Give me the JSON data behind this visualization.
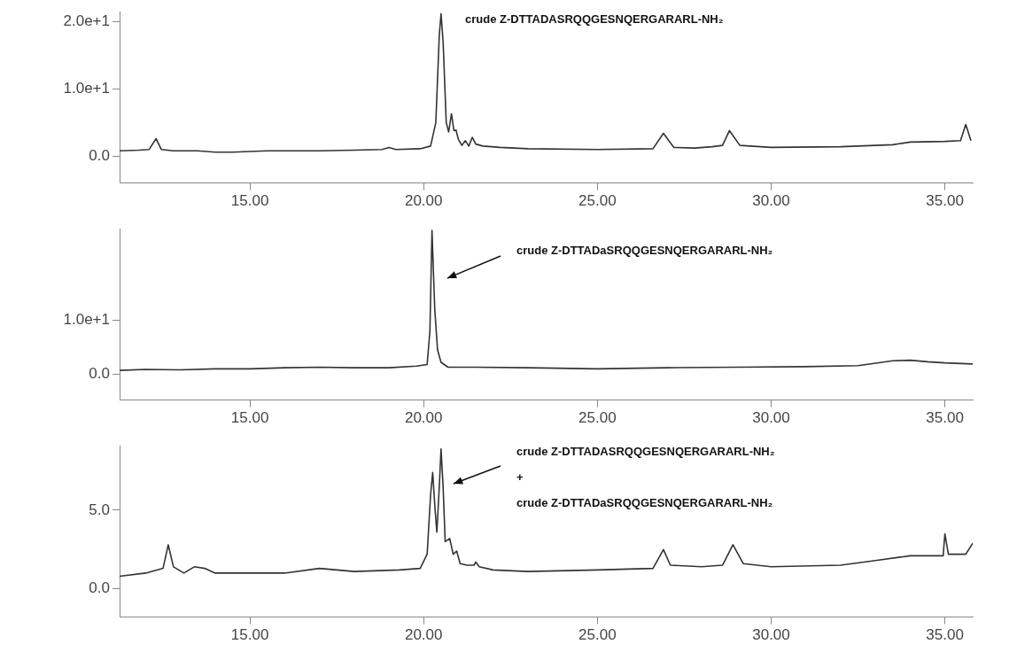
{
  "chart_data": [
    {
      "type": "line",
      "xlim": [
        11.25,
        35.8
      ],
      "ylim": [
        -4,
        21.5
      ],
      "xticks": [
        {
          "value": 15,
          "label": "15.00"
        },
        {
          "value": 20,
          "label": "20.00"
        },
        {
          "value": 25,
          "label": "25.00"
        },
        {
          "value": 30,
          "label": "30.00"
        },
        {
          "value": 35,
          "label": "35.00"
        }
      ],
      "yticks": [
        {
          "value": 0,
          "label": "0.0"
        },
        {
          "value": 10,
          "label": "1.0e+1"
        },
        {
          "value": 20,
          "label": "2.0e+1"
        }
      ],
      "grid": false,
      "legend": false,
      "marker": "none",
      "line_style": "solid",
      "annotations": [
        "crude Z-DTTADASRQQGESNQERGARARL-NH₂"
      ],
      "series": [
        {
          "color": "#333333",
          "x": [
            11.25,
            11.8,
            12.1,
            12.3,
            12.45,
            12.8,
            13.5,
            14.0,
            14.5,
            15.5,
            17,
            18,
            18.8,
            19.0,
            19.2,
            19.9,
            20.2,
            20.35,
            20.45,
            20.5,
            20.56,
            20.65,
            20.72,
            20.8,
            20.87,
            20.93,
            21.0,
            21.1,
            21.2,
            21.3,
            21.4,
            21.5,
            21.7,
            22.2,
            23,
            25,
            26.6,
            26.9,
            27.2,
            27.8,
            28.3,
            28.6,
            28.8,
            29.1,
            30,
            32,
            33.5,
            34,
            35,
            35.45,
            35.6,
            35.75
          ],
          "values": [
            0.8,
            0.9,
            1.0,
            2.6,
            1.0,
            0.8,
            0.8,
            0.6,
            0.6,
            0.8,
            0.8,
            0.9,
            1.0,
            1.3,
            1.0,
            1.1,
            1.5,
            5,
            18,
            21.2,
            17,
            5,
            3.6,
            6.3,
            3.8,
            3.9,
            2.5,
            1.6,
            2.3,
            1.5,
            2.8,
            1.8,
            1.5,
            1.3,
            1.1,
            1.0,
            1.1,
            3.4,
            1.3,
            1.2,
            1.4,
            1.6,
            3.8,
            1.6,
            1.3,
            1.4,
            1.7,
            2.1,
            2.2,
            2.3,
            4.7,
            2.3
          ]
        }
      ]
    },
    {
      "type": "line",
      "xlim": [
        11.25,
        35.8
      ],
      "ylim": [
        -4.8,
        27
      ],
      "xticks": [
        {
          "value": 15,
          "label": "15.00"
        },
        {
          "value": 20,
          "label": "20.00"
        },
        {
          "value": 25,
          "label": "25.00"
        },
        {
          "value": 30,
          "label": "30.00"
        },
        {
          "value": 35,
          "label": "35.00"
        }
      ],
      "yticks": [
        {
          "value": 0,
          "label": "0.0"
        },
        {
          "value": 10,
          "label": "1.0e+1"
        }
      ],
      "grid": false,
      "legend": false,
      "marker": "none",
      "line_style": "solid",
      "annotations": [
        "crude Z-DTTADaSRQQGESNQERGARARL-NH₂"
      ],
      "series": [
        {
          "color": "#333333",
          "x": [
            11.25,
            12,
            13,
            14,
            15,
            16,
            17,
            18,
            19,
            19.8,
            20.1,
            20.18,
            20.24,
            20.32,
            20.4,
            20.5,
            20.7,
            21.5,
            23,
            25,
            27,
            29,
            31,
            32.5,
            33.5,
            34,
            34.5,
            35,
            35.8
          ],
          "values": [
            0.7,
            0.9,
            0.8,
            1.0,
            1.0,
            1.2,
            1.3,
            1.2,
            1.2,
            1.5,
            1.8,
            8,
            26.7,
            12,
            4.5,
            2.2,
            1.3,
            1.3,
            1.2,
            1.0,
            1.2,
            1.3,
            1.4,
            1.6,
            2.5,
            2.6,
            2.3,
            2.1,
            1.9
          ]
        }
      ]
    },
    {
      "type": "line",
      "xlim": [
        11.25,
        35.8
      ],
      "ylim": [
        -1.8,
        9.1
      ],
      "xticks": [
        {
          "value": 15,
          "label": "15.00"
        },
        {
          "value": 20,
          "label": "20.00"
        },
        {
          "value": 25,
          "label": "25.00"
        },
        {
          "value": 30,
          "label": "30.00"
        },
        {
          "value": 35,
          "label": "35.00"
        }
      ],
      "yticks": [
        {
          "value": 0,
          "label": "0.0"
        },
        {
          "value": 5,
          "label": "5.0"
        }
      ],
      "grid": false,
      "legend": false,
      "marker": "none",
      "line_style": "solid",
      "annotations": [
        "crude Z-DTTADASRQQGESNQERGARARL-NH₂",
        "+",
        "crude Z-DTTADaSRQQGESNQERGARARL-NH₂"
      ],
      "series": [
        {
          "color": "#333333",
          "x": [
            11.25,
            12,
            12.5,
            12.65,
            12.8,
            13.1,
            13.4,
            13.7,
            14,
            15,
            16,
            17,
            18,
            19.3,
            19.9,
            20.1,
            20.2,
            20.26,
            20.33,
            20.38,
            20.45,
            20.5,
            20.56,
            20.62,
            20.75,
            20.85,
            20.95,
            21.05,
            21.25,
            21.45,
            21.5,
            21.6,
            22,
            23,
            25,
            26.6,
            26.9,
            27.1,
            28,
            28.6,
            28.9,
            29.2,
            30,
            32,
            33,
            34,
            34.8,
            34.95,
            35.0,
            35.1,
            35.6,
            35.8
          ],
          "values": [
            0.8,
            1.0,
            1.3,
            2.8,
            1.4,
            1.0,
            1.4,
            1.3,
            1.0,
            1.0,
            1.0,
            1.3,
            1.1,
            1.2,
            1.3,
            2.2,
            6,
            7.4,
            5,
            3.6,
            6.5,
            8.9,
            6.5,
            3.0,
            3.2,
            2.2,
            2.4,
            1.6,
            1.5,
            1.5,
            1.7,
            1.4,
            1.2,
            1.1,
            1.2,
            1.3,
            2.5,
            1.5,
            1.4,
            1.5,
            2.8,
            1.6,
            1.4,
            1.5,
            1.8,
            2.1,
            2.1,
            2.1,
            3.5,
            2.2,
            2.2,
            2.9
          ]
        }
      ]
    }
  ]
}
